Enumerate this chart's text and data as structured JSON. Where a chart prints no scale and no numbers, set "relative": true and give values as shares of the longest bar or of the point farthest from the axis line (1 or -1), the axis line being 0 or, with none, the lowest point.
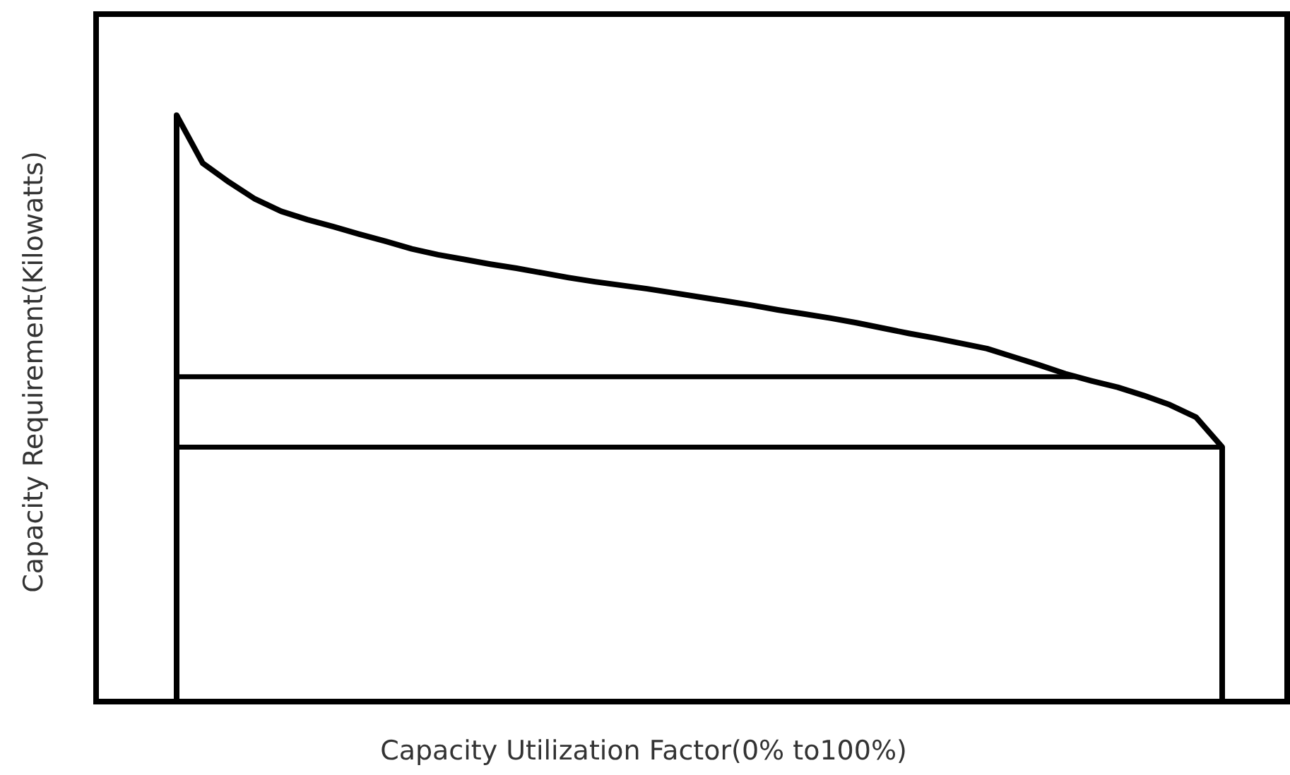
{
  "chart_data": {
    "type": "area",
    "xlabel": "Capacity Utilization Factor(0% to100%)",
    "ylabel": "Capacity Requirement(Kilowatts)",
    "relative": true,
    "categories": [
      null,
      null,
      null,
      null,
      null,
      null,
      null,
      null,
      null,
      null,
      null,
      null,
      null,
      null,
      null,
      null,
      null,
      null,
      null,
      null,
      null,
      null,
      null,
      null,
      null,
      null,
      null,
      null,
      null,
      null,
      null,
      null,
      null,
      null,
      null,
      null,
      null,
      null,
      null,
      null,
      null
    ],
    "series": [
      {
        "color": "#000000",
        "values": [
          1,
          0.918,
          0.886,
          0.857,
          0.836,
          0.822,
          0.81,
          0.797,
          0.785,
          0.772,
          0.762,
          0.754,
          0.746,
          0.739,
          0.731,
          0.723,
          0.716,
          0.71,
          0.704,
          0.697,
          0.69,
          0.683,
          0.676,
          0.668,
          0.661,
          0.654,
          0.646,
          0.637,
          0.628,
          0.62,
          0.611,
          0.602,
          0.588,
          0.574,
          0.559,
          0.547,
          0.536,
          0.522,
          0.506,
          0.485,
          0.434
        ]
      }
    ],
    "ref_lines": [
      {
        "axis": "y",
        "value": 0.554,
        "color": "#000000"
      },
      {
        "axis": "y",
        "value": 0.434,
        "color": "#000000"
      }
    ]
  }
}
